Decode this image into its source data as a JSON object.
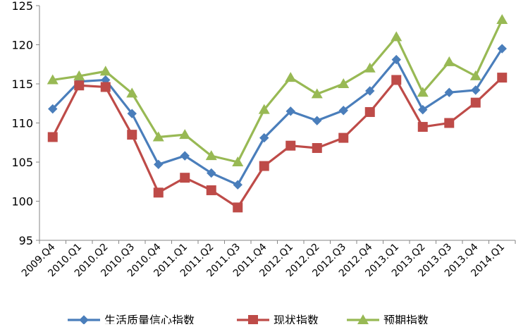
{
  "chart_data": {
    "type": "line",
    "categories": [
      "2009.Q4",
      "2010.Q1",
      "2010.Q2",
      "2010.Q3",
      "2010.Q4",
      "2011.Q1",
      "2011.Q2",
      "2011.Q3",
      "2011.Q4",
      "2012.Q1",
      "2012.Q2",
      "2012.Q3",
      "2012.Q4",
      "2013.Q1",
      "2013.Q2",
      "2013.Q3",
      "2013.Q4",
      "2014.Q1"
    ],
    "ylim": [
      95,
      125
    ],
    "yticks": [
      "95",
      "100",
      "105",
      "110",
      "115",
      "120",
      "125"
    ],
    "grid": false,
    "legend_position": "bottom",
    "series": [
      {
        "name": "生活质量信心指数",
        "color": "#4a7ebb",
        "marker": "diamond",
        "values": [
          111.8,
          115.3,
          115.5,
          111.2,
          104.7,
          105.8,
          103.6,
          102.1,
          108.1,
          111.5,
          110.3,
          111.6,
          114.1,
          118.1,
          111.7,
          113.9,
          114.2,
          119.5
        ]
      },
      {
        "name": "现状指数",
        "color": "#be4b48",
        "marker": "square",
        "values": [
          108.2,
          114.8,
          114.6,
          108.5,
          101.1,
          103.0,
          101.4,
          99.2,
          104.5,
          107.1,
          106.8,
          108.1,
          111.4,
          115.5,
          109.5,
          110.0,
          112.6,
          115.8
        ]
      },
      {
        "name": "预期指数",
        "color": "#98b954",
        "marker": "triangle",
        "values": [
          115.5,
          116.0,
          116.6,
          113.8,
          108.2,
          108.5,
          105.8,
          105.0,
          111.7,
          115.8,
          113.7,
          115.0,
          117.0,
          121.0,
          113.9,
          117.8,
          116.0,
          123.2
        ]
      }
    ]
  }
}
